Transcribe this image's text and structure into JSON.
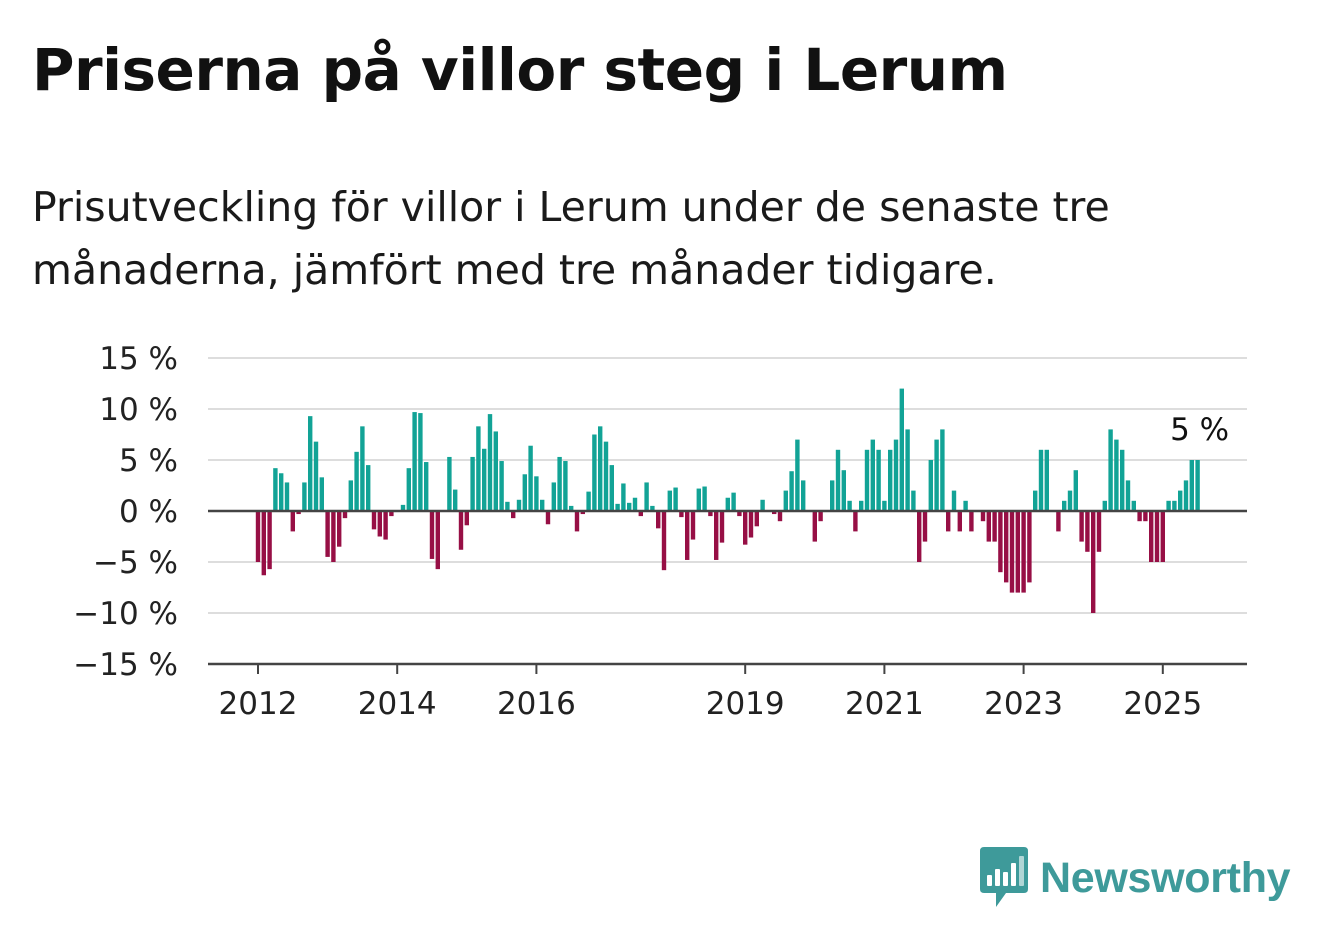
{
  "header": {
    "title": "Priserna på villor steg i Lerum",
    "subtitle": "Prisutveckling för villor i Lerum under de senaste tre månaderna, jämfört med tre månader tidigare."
  },
  "brand": {
    "name": "Newsworthy",
    "icon": "newsworthy-logo-icon",
    "color": "#3e9a9a"
  },
  "colors": {
    "positive": "#12a396",
    "negative": "#970f45",
    "grid": "#dddddd",
    "axis": "#444444"
  },
  "chart_data": {
    "type": "bar",
    "title": "Priserna på villor steg i Lerum",
    "subtitle": "Prisutveckling för villor i Lerum under de senaste tre månaderna, jämfört med tre månader tidigare.",
    "x_start": "2012-01",
    "x_step": "1 month",
    "xlabel": "",
    "ylabel": "",
    "ylim": [
      -15,
      15
    ],
    "yticks": [
      15,
      10,
      5,
      0,
      -5,
      -10,
      -15
    ],
    "ytick_labels": [
      "15 %",
      "10 %",
      "5 %",
      "0 %",
      "−5 %",
      "−10 %",
      "−15 %"
    ],
    "xticks": [
      "2012",
      "2014",
      "2016",
      "2019",
      "2021",
      "2023",
      "2025"
    ],
    "grid": true,
    "values": [
      -5,
      -6.3,
      -5.7,
      4.2,
      3.7,
      2.8,
      -2,
      -0.3,
      2.8,
      9.3,
      6.8,
      3.3,
      -4.5,
      -5,
      -3.5,
      -0.7,
      3,
      5.8,
      8.3,
      4.5,
      -1.8,
      -2.5,
      -2.8,
      -0.5,
      0,
      0.6,
      4.2,
      9.7,
      9.6,
      4.8,
      -4.7,
      -5.7,
      0,
      5.3,
      2.1,
      -3.8,
      -1.4,
      5.3,
      8.3,
      6.1,
      9.5,
      7.8,
      4.9,
      0.9,
      -0.7,
      1.1,
      3.6,
      6.4,
      3.4,
      1.1,
      -1.3,
      2.8,
      5.3,
      4.9,
      0.5,
      -2,
      -0.3,
      1.9,
      7.5,
      8.3,
      6.8,
      4.5,
      0.7,
      2.7,
      0.8,
      1.3,
      -0.5,
      2.8,
      0.5,
      -1.7,
      -5.8,
      2,
      2.3,
      -0.6,
      -4.8,
      -2.8,
      2.2,
      2.4,
      -0.5,
      -4.8,
      -3.1,
      1.3,
      1.8,
      -0.5,
      -3.3,
      -2.6,
      -1.5,
      1.1,
      0,
      -0.3,
      -1,
      2,
      3.9,
      7,
      3,
      0,
      -3,
      -1,
      0,
      3,
      6,
      4,
      1,
      -2,
      1,
      6,
      7,
      6,
      1,
      6,
      7,
      12,
      8,
      2,
      -5,
      -3,
      5,
      7,
      8,
      -2,
      2,
      -2,
      1,
      -2,
      0,
      -1,
      -3,
      -3,
      -6,
      -7,
      -8,
      -8,
      -8,
      -7,
      2,
      6,
      6,
      0,
      -2,
      1,
      2,
      4,
      -3,
      -4,
      -10,
      -4,
      1,
      8,
      7,
      6,
      3,
      1,
      -1,
      -1,
      -5,
      -5,
      -5,
      1,
      1,
      2,
      3,
      5,
      5
    ],
    "annotation": {
      "text": "5 %",
      "value": 5,
      "month": "2025-07"
    }
  }
}
